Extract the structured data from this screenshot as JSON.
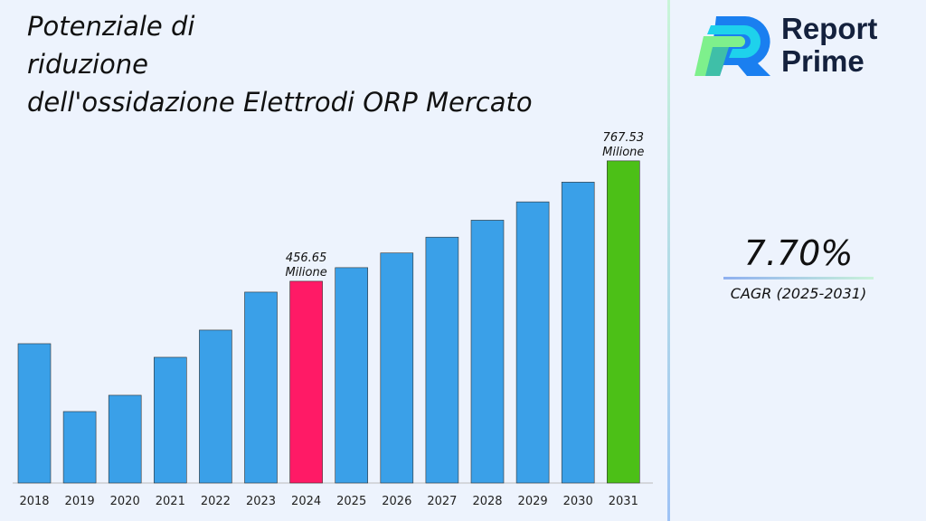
{
  "title_lines": [
    "Potenziale di",
    "riduzione",
    "dell'ossidazione Elettrodi ORP Mercato"
  ],
  "logo": {
    "text_line1": "Report",
    "text_line2": "Prime"
  },
  "cagr": {
    "value": "7.70%",
    "label": "CAGR (2025-2031)"
  },
  "colors": {
    "default_bar": "#3aa0e8",
    "highlight_2024": "#ff1a66",
    "highlight_2031": "#4cc017",
    "background": "#edf3fd"
  },
  "chart_data": {
    "type": "bar",
    "categories": [
      "2018",
      "2019",
      "2020",
      "2021",
      "2022",
      "2023",
      "2024",
      "2025",
      "2026",
      "2027",
      "2028",
      "2029",
      "2030",
      "2031"
    ],
    "values": [
      295.4,
      120.1,
      162.2,
      260.3,
      330.5,
      428.6,
      456.65,
      491.8,
      529.7,
      570.5,
      614.4,
      661.7,
      712.7,
      767.53
    ],
    "data_labels": {
      "2024": [
        "456.65",
        "Milione"
      ],
      "2031": [
        "767.53",
        "Milione"
      ]
    },
    "ylim": [
      -64.5,
      856
    ],
    "grid": false,
    "xlabel": "",
    "ylabel": ""
  }
}
